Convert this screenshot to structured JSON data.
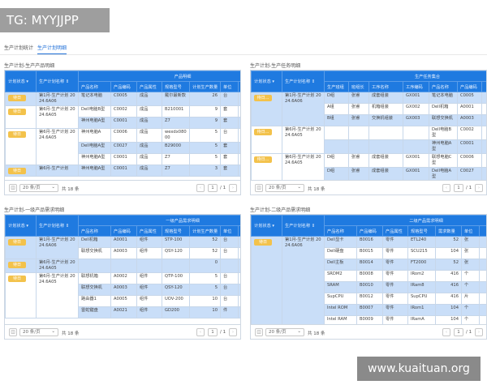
{
  "watermarks": {
    "top_left": "TG: MYYJJPP",
    "bottom_right": "www.kuaituan.org"
  },
  "tabs": [
    {
      "label": "生产计划统计",
      "active": false
    },
    {
      "label": "生产计划明细",
      "active": true
    }
  ],
  "colors": {
    "header": "#1f7ae0",
    "highlight_row": "#c9def8",
    "badge": "#f3c24b",
    "active_tab": "#1f6fd8"
  },
  "pagination": {
    "page_size": "20 条/页",
    "total": "共 18 条",
    "page": "1",
    "pages": "/ 1",
    "prev_icon": "chevron-left",
    "next_icon": "chevron-right",
    "toggle_icon": "panel-toggle"
  },
  "panels": [
    {
      "title": "生产计划-生产产品明细",
      "col_status": "计划状态",
      "col_plan": "生产计划名称",
      "group_header": "产品明细",
      "columns": [
        "产品名称",
        "产品编码",
        "产品属性",
        "规格型号",
        "计划生产数量",
        "单位",
        ""
      ],
      "numeric_col": 4,
      "groups": [
        {
          "status": "待日",
          "plan": "第1月-生产计划 2024.6A06",
          "highlight": true,
          "rows": [
            {
              "highlight": true,
              "cells": [
                "笔记本电脑",
                "C0005",
                "成品",
                "戴尔最新款",
                "26",
                "台",
                ""
              ]
            }
          ]
        },
        {
          "status": "待日",
          "plan": "第6月-生产计划 2024.6A05",
          "highlight": false,
          "rows": [
            {
              "highlight": false,
              "cells": [
                "Dell电脑B型",
                "C0002",
                "成品",
                "B210001",
                "9",
                "套",
                ""
              ]
            },
            {
              "highlight": true,
              "cells": [
                "神州电脑A型",
                "C0001",
                "成品",
                "Z7",
                "9",
                "套",
                ""
              ]
            }
          ]
        },
        {
          "status": "待日",
          "plan": "第6月-生产计划 2024.6A05",
          "highlight": false,
          "rows": [
            {
              "highlight": false,
              "cells": [
                "神州电脑A",
                "C0006",
                "成品",
                "wexdx08000",
                "5",
                "台",
                ""
              ]
            },
            {
              "highlight": true,
              "cells": [
                "Dell电脑A型",
                "C0027",
                "成品",
                "B29000",
                "5",
                "套",
                ""
              ]
            },
            {
              "highlight": false,
              "cells": [
                "神州电脑A型",
                "C0001",
                "成品",
                "Z7",
                "5",
                "套",
                ""
              ]
            }
          ]
        },
        {
          "status": "待日",
          "plan": "第6月-生产计划",
          "highlight": true,
          "rows": [
            {
              "highlight": true,
              "cells": [
                "神州电脑A型",
                "C0001",
                "成品",
                "Z7",
                "3",
                "套",
                ""
              ]
            }
          ]
        }
      ]
    },
    {
      "title": "生产计划-生产任务明细",
      "col_status": "计划状态",
      "col_plan": "生产计划名称",
      "group_header": "生产任务集合",
      "columns": [
        "生产班组",
        "班组长",
        "工序名称",
        "工序编码",
        "产品名称",
        "产品编码",
        ""
      ],
      "numeric_col": -1,
      "groups": [
        {
          "status": "待日...",
          "plan": "第1月-生产计划 2024.6A06",
          "highlight": true,
          "rows": [
            {
              "highlight": true,
              "cells": [
                "D组",
                "张睿",
                "成套组装",
                "GX001",
                "笔记本电脑",
                "C0005",
                ""
              ]
            },
            {
              "highlight": false,
              "cells": [
                "A组",
                "张睿",
                "机箱组装",
                "GX002",
                "Dell机箱",
                "A0001",
                ""
              ]
            },
            {
              "highlight": true,
              "cells": [
                "B组",
                "张睿",
                "交换机组装",
                "GX003",
                "联想交换机",
                "A0003",
                ""
              ]
            }
          ]
        },
        {
          "status": "待日...",
          "plan": "第6月-生产计划 2024.6A05",
          "highlight": false,
          "rows": [
            {
              "highlight": false,
              "cells": [
                "",
                "",
                "",
                "",
                "Dell电脑B型",
                "C0002",
                ""
              ]
            },
            {
              "highlight": true,
              "cells": [
                "",
                "",
                "",
                "",
                "神州电脑A型",
                "C0001",
                ""
              ]
            }
          ]
        },
        {
          "status": "待日...",
          "plan": "第6月-生产计划 2024.6A05",
          "highlight": false,
          "rows": [
            {
              "highlight": false,
              "cells": [
                "D组",
                "张睿",
                "成套组装",
                "GX001",
                "联想电脑C型",
                "C0006",
                ""
              ]
            },
            {
              "highlight": true,
              "cells": [
                "D组",
                "张睿",
                "成套组装",
                "GX001",
                "Dell电脑A型",
                "C0027",
                ""
              ]
            },
            {
              "highlight": false,
              "cells": [
                "",
                "",
                "",
                "",
                "神州电脑A型",
                "C0001",
                ""
              ]
            }
          ]
        }
      ]
    },
    {
      "title": "生产计划-一级产品需求明细",
      "col_status": "计划状态",
      "col_plan": "生产计划名称",
      "group_header": "一级产品需求明细",
      "columns": [
        "产品名称",
        "产品编码",
        "产品属性",
        "规格型号",
        "计划生产数量",
        "单位",
        ""
      ],
      "numeric_col": 4,
      "groups": [
        {
          "status": "待日",
          "plan": "第1月-生产计划 2024.6A06",
          "highlight": true,
          "rows": [
            {
              "highlight": true,
              "cells": [
                "Dell机箱",
                "A0001",
                "组件",
                "STP-100",
                "52",
                "台",
                ""
              ]
            },
            {
              "highlight": false,
              "cells": [
                "联想交换机",
                "A0003",
                "组件",
                "QSY-120",
                "52",
                "台",
                ""
              ]
            }
          ]
        },
        {
          "status": "待日",
          "plan": "第6月-生产计划 2024.6A05",
          "highlight": true,
          "rows": [
            {
              "highlight": true,
              "cells": [
                "",
                "",
                "",
                "",
                "0",
                "",
                ""
              ]
            }
          ]
        },
        {
          "status": "待日",
          "plan": "第6月-生产计划 2024.6A05",
          "highlight": false,
          "rows": [
            {
              "highlight": false,
              "cells": [
                "联想机箱",
                "A0002",
                "组件",
                "QTP-100",
                "5",
                "台",
                ""
              ]
            },
            {
              "highlight": true,
              "cells": [
                "联想交换机",
                "A0003",
                "组件",
                "QSY-120",
                "5",
                "台",
                ""
              ]
            },
            {
              "highlight": false,
              "cells": [
                "路由器1",
                "A0005",
                "组件",
                "UOV-200",
                "10",
                "台",
                ""
              ]
            },
            {
              "highlight": true,
              "cells": [
                "雷蛇键盘",
                "A0021",
                "组件",
                "GD200",
                "10",
                "件",
                ""
              ]
            }
          ]
        }
      ]
    },
    {
      "title": "生产计划-二级产品需求明细",
      "col_status": "计划状态",
      "col_plan": "生产计划名称",
      "group_header": "二级产品需求明细",
      "columns": [
        "产品名称",
        "产品编码",
        "产品属性",
        "规格型号",
        "需求数量",
        "单位",
        ""
      ],
      "numeric_col": 4,
      "groups": [
        {
          "status": "待日",
          "plan": "第1月-生产计划 2024.6A06",
          "highlight": true,
          "rows": [
            {
              "highlight": true,
              "cells": [
                "Dell显卡",
                "B0016",
                "零件",
                "ETL240",
                "52",
                "张",
                ""
              ]
            },
            {
              "highlight": false,
              "cells": [
                "Dell硬盘",
                "B0015",
                "零件",
                "SCU215",
                "104",
                "张",
                ""
              ]
            },
            {
              "highlight": true,
              "cells": [
                "Dell主板",
                "B0014",
                "零件",
                "FT2000",
                "52",
                "张",
                ""
              ]
            },
            {
              "highlight": false,
              "cells": [
                "SRDM2",
                "B0008",
                "零件",
                "IRom2",
                "416",
                "个",
                ""
              ]
            },
            {
              "highlight": true,
              "cells": [
                "SRAM",
                "B0010",
                "零件",
                "IRam8",
                "416",
                "个",
                ""
              ]
            },
            {
              "highlight": false,
              "cells": [
                "SupCPU",
                "B0012",
                "零件",
                "SupCPU",
                "416",
                "片",
                ""
              ]
            },
            {
              "highlight": true,
              "cells": [
                "Intel ROM",
                "B0007",
                "零件",
                "IRom1",
                "104",
                "个",
                ""
              ]
            },
            {
              "highlight": false,
              "cells": [
                "Intel RAM",
                "B0009",
                "零件",
                "IRamA",
                "104",
                "个",
                ""
              ]
            }
          ]
        }
      ]
    }
  ]
}
